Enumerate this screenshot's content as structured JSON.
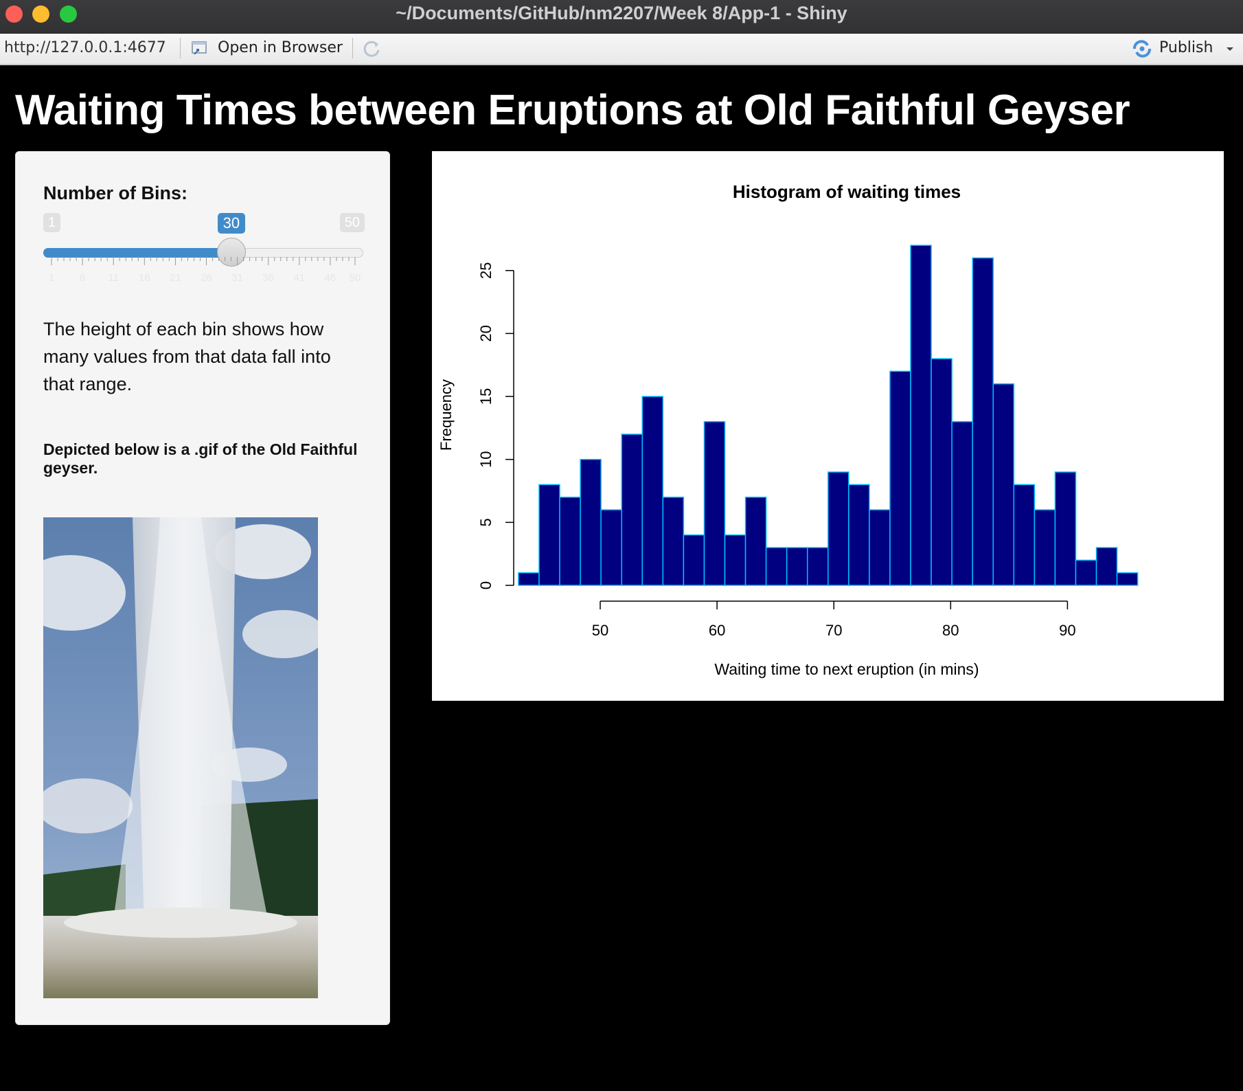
{
  "window": {
    "title": "~/Documents/GitHub/nm2207/Week 8/App-1 - Shiny"
  },
  "toolbar": {
    "url": "http://127.0.0.1:4677",
    "open_in_browser": "Open in Browser",
    "publish": "Publish"
  },
  "page": {
    "title": "Waiting Times between Eruptions at Old Faithful Geyser"
  },
  "sidebar": {
    "slider": {
      "label": "Number of Bins:",
      "min": "1",
      "max": "50",
      "value": "30",
      "value_number": 30,
      "grid_labels": [
        "1",
        "6",
        "11",
        "16",
        "21",
        "26",
        "31",
        "36",
        "41",
        "46",
        "50"
      ]
    },
    "paragraph": "The height of each bin shows how many values from that data fall into that range.",
    "heading": "Depicted below is a .gif of the Old Faithful geyser."
  },
  "colors": {
    "slider_accent": "#428bca",
    "bar_fill": "#000080",
    "bar_border": "#00bfff"
  },
  "chart_data": {
    "type": "bar",
    "title": "Histogram of waiting times",
    "xlabel": "Waiting time to next eruption (in mins)",
    "ylabel": "Frequency",
    "bin_start": 43,
    "bin_width": 1.767,
    "values": [
      1,
      8,
      7,
      10,
      6,
      12,
      15,
      7,
      4,
      13,
      4,
      7,
      3,
      3,
      3,
      9,
      8,
      6,
      17,
      27,
      18,
      13,
      26,
      16,
      8,
      6,
      9,
      2,
      3,
      1
    ],
    "xticks": [
      50,
      60,
      70,
      80,
      90
    ],
    "yticks": [
      0,
      5,
      10,
      15,
      20,
      25
    ],
    "xlim": [
      43,
      96
    ],
    "ylim": [
      0,
      27
    ]
  }
}
